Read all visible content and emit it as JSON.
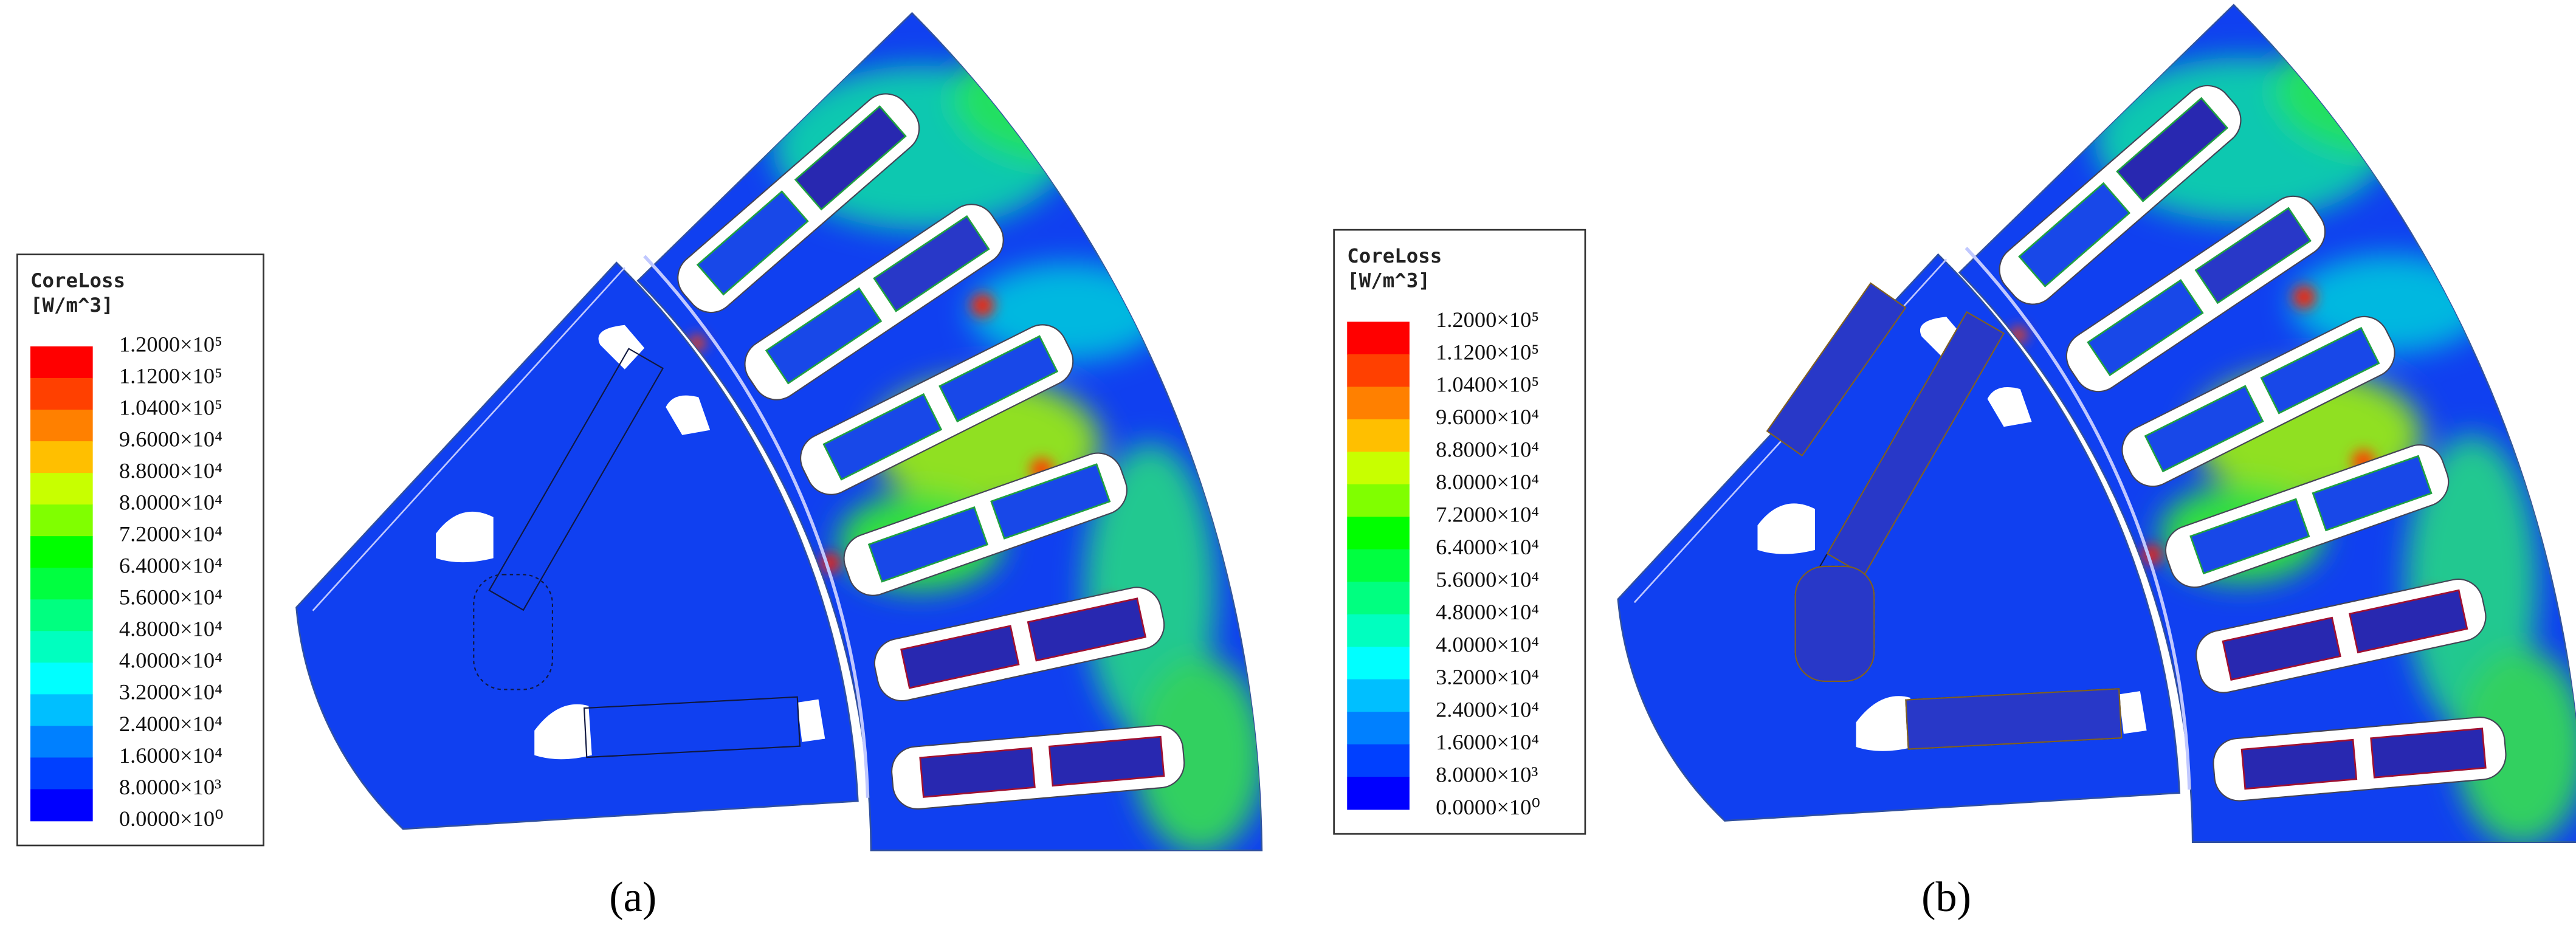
{
  "legend_colors": [
    "#ff0000",
    "#ff4000",
    "#ff8000",
    "#ffbf00",
    "#c8ff00",
    "#80ff00",
    "#00ff00",
    "#00ff40",
    "#00ff80",
    "#00ffbf",
    "#00ffff",
    "#00bfff",
    "#0080ff",
    "#0040ff",
    "#0000ff"
  ],
  "panels": [
    {
      "legend": {
        "title": "CoreLoss",
        "unit": "[W/m^3]",
        "labels": [
          "1.2000×10⁵",
          "1.1200×10⁵",
          "1.0400×10⁵",
          "9.6000×10⁴",
          "8.8000×10⁴",
          "8.0000×10⁴",
          "7.2000×10⁴",
          "6.4000×10⁴",
          "5.6000×10⁴",
          "4.8000×10⁴",
          "4.0000×10⁴",
          "3.2000×10⁴",
          "2.4000×10⁴",
          "1.6000×10⁴",
          "8.0000×10³",
          "0.0000×10⁰"
        ]
      },
      "caption": "(a)"
    },
    {
      "legend": {
        "title": "CoreLoss",
        "unit": "[W/m^3]",
        "labels": [
          "1.2000×10⁵",
          "1.1200×10⁵",
          "1.0400×10⁵",
          "9.6000×10⁴",
          "8.8000×10⁴",
          "8.0000×10⁴",
          "7.2000×10⁴",
          "6.4000×10⁴",
          "5.6000×10⁴",
          "4.8000×10⁴",
          "4.0000×10⁴",
          "3.2000×10⁴",
          "2.4000×10⁴",
          "1.6000×10⁴",
          "8.0000×10³",
          "0.0000×10⁰"
        ]
      },
      "caption": "(b)"
    }
  ]
}
